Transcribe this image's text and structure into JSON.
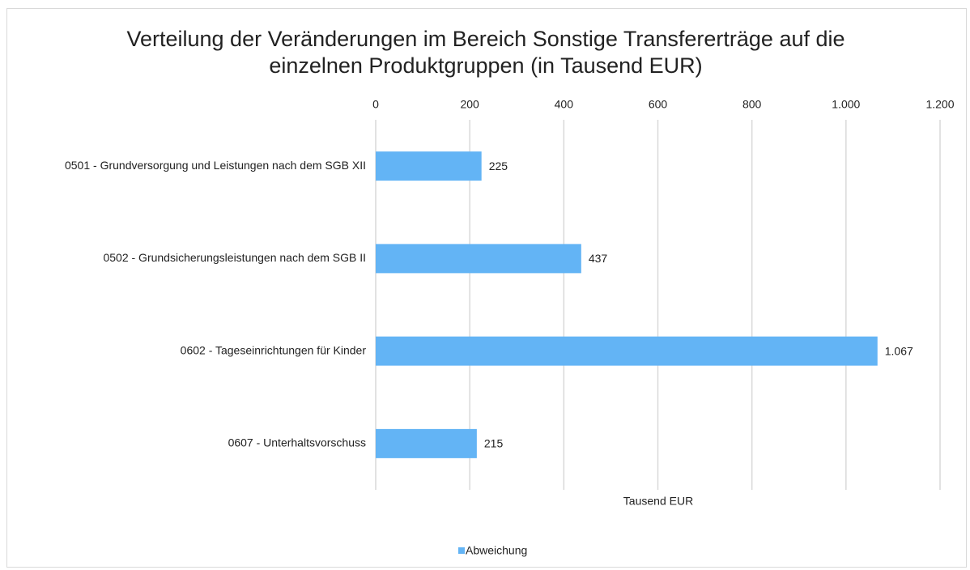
{
  "chart_data": {
    "type": "bar",
    "orientation": "horizontal",
    "title": "Verteilung der Veränderungen im Bereich Sonstige Transfererträge auf die einzelnen Produktgruppen (in Tausend EUR)",
    "x_label": "Tausend EUR",
    "categories": [
      "0501 - Grundversorgung und Leistungen nach dem SGB XII",
      "0502 - Grundsicherungsleistungen nach dem SGB II",
      "0602 - Tageseinrichtungen für Kinder",
      "0607 - Unterhaltsvorschuss"
    ],
    "series": [
      {
        "name": "Abweichung",
        "color": "#63b4f5",
        "values": [
          225,
          437,
          1067,
          215
        ],
        "value_labels": [
          "225",
          "437",
          "1.067",
          "215"
        ]
      }
    ],
    "xlim": [
      0,
      1200
    ],
    "xticks": [
      0,
      200,
      400,
      600,
      800,
      {
        "value": 1000,
        "label": "1.000"
      },
      {
        "value": 1200,
        "label": "1.200"
      }
    ],
    "grid": true,
    "legend": "bottom"
  }
}
